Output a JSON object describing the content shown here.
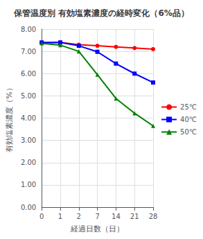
{
  "chart_data": {
    "type": "line",
    "title": "保管温度別 有効塩素濃度の経時変化（6%品）",
    "xlabel": "経過日数（日）",
    "ylabel": "有効塩素濃度（%）",
    "categories": [
      "0",
      "1",
      "2",
      "7",
      "14",
      "21",
      "28"
    ],
    "series": [
      {
        "name": "25℃",
        "color": "#ff0000",
        "marker": "circle",
        "values": [
          7.38,
          7.4,
          7.3,
          7.25,
          7.2,
          7.15,
          7.1
        ]
      },
      {
        "name": "40℃",
        "color": "#0000ff",
        "marker": "square",
        "values": [
          7.4,
          7.4,
          7.25,
          6.98,
          6.45,
          6.0,
          5.6
        ]
      },
      {
        "name": "50℃",
        "color": "#008000",
        "marker": "triangle",
        "values": [
          7.36,
          7.28,
          7.0,
          5.95,
          4.88,
          4.22,
          3.65
        ]
      }
    ],
    "ylim": [
      0.0,
      8.0
    ],
    "yticks": [
      {
        "value": 0,
        "label": "0.00"
      },
      {
        "value": 1,
        "label": "1.00"
      },
      {
        "value": 2,
        "label": "2.00"
      },
      {
        "value": 3,
        "label": "3.00"
      },
      {
        "value": 4,
        "label": "4.00"
      },
      {
        "value": 5,
        "label": "5.00"
      },
      {
        "value": 6,
        "label": "6.00"
      },
      {
        "value": 7,
        "label": "7.00"
      },
      {
        "value": 8,
        "label": "8.00"
      }
    ],
    "grid": true,
    "legend": "right"
  }
}
